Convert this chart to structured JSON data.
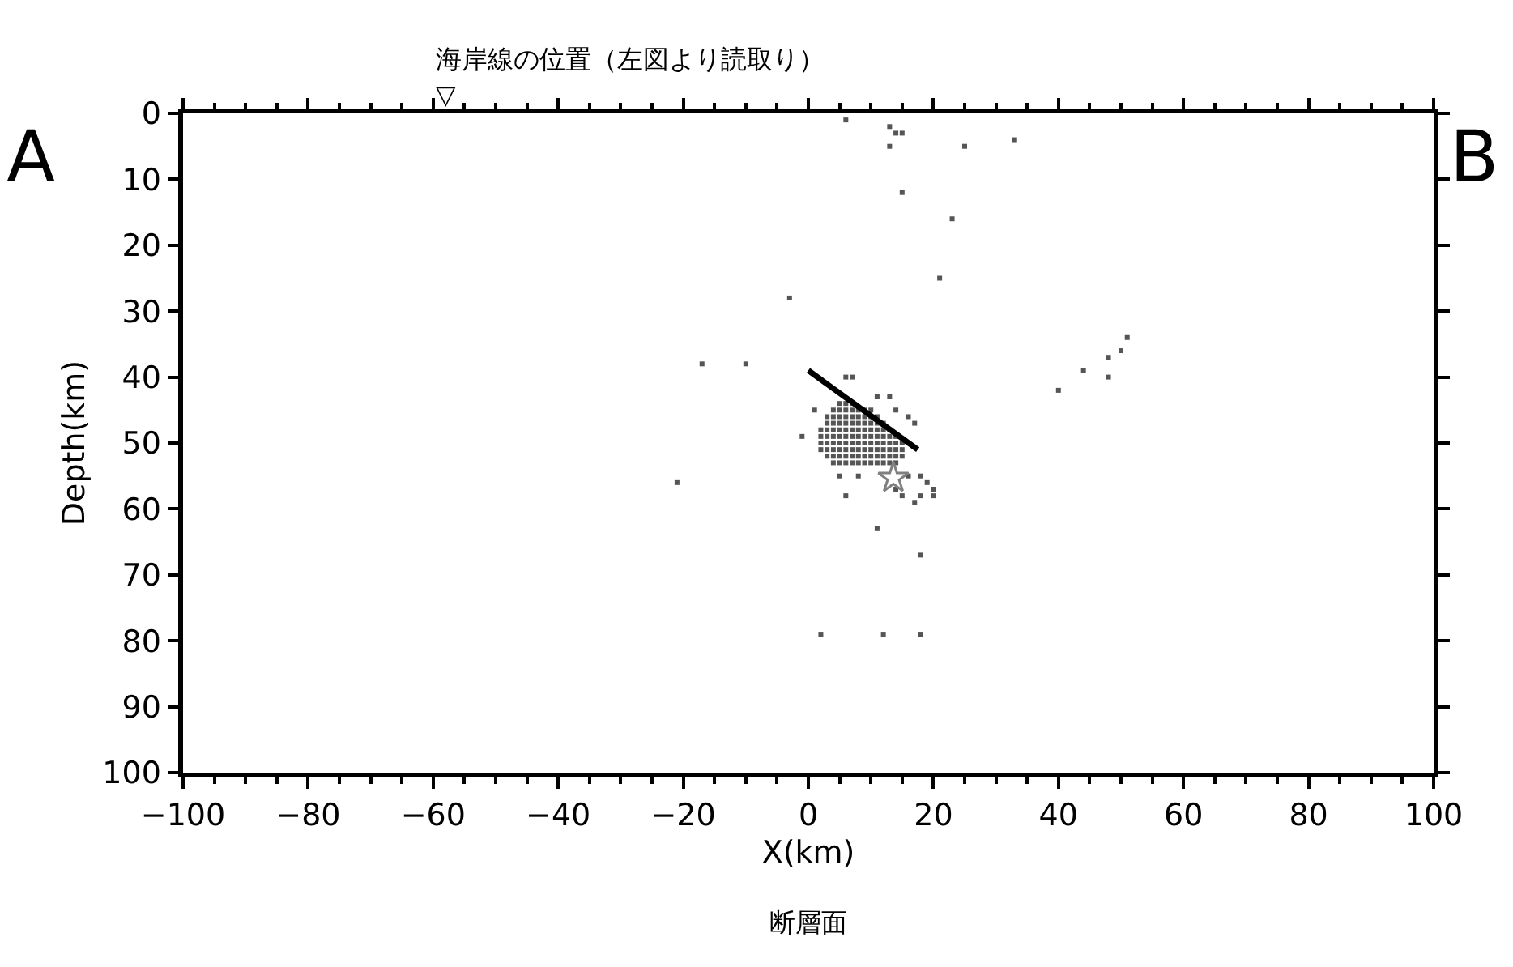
{
  "chart_data": {
    "type": "scatter",
    "xlabel": "X(km)",
    "ylabel": "Depth(km)",
    "xlim": [
      -100,
      100
    ],
    "xticks": [
      -100,
      -80,
      -60,
      -40,
      -20,
      0,
      20,
      40,
      60,
      80,
      100
    ],
    "ylim": [
      100,
      0
    ],
    "yticks": [
      0,
      10,
      20,
      30,
      40,
      50,
      60,
      70,
      80,
      90,
      100
    ],
    "annotations": [
      "A",
      "B",
      "断層面",
      "▽",
      "海岸線の位置（左図より読取り）"
    ],
    "series": [
      {
        "type": "scatter",
        "marker": "square",
        "color": "#555555",
        "x": [
          5,
          6,
          7,
          4,
          5,
          6,
          7,
          8,
          9,
          10,
          3,
          4,
          5,
          6,
          7,
          8,
          9,
          10,
          11,
          3,
          4,
          5,
          6,
          7,
          8,
          9,
          10,
          11,
          12,
          2,
          3,
          4,
          5,
          6,
          7,
          8,
          9,
          10,
          11,
          12,
          13,
          2,
          3,
          4,
          5,
          6,
          7,
          8,
          9,
          10,
          11,
          12,
          13,
          14,
          2,
          3,
          4,
          5,
          6,
          7,
          8,
          9,
          10,
          11,
          12,
          13,
          14,
          15,
          2,
          3,
          4,
          5,
          6,
          7,
          8,
          9,
          10,
          11,
          12,
          13,
          14,
          15,
          3,
          4,
          5,
          6,
          7,
          8,
          9,
          10,
          11,
          12,
          13,
          14,
          15,
          4,
          5,
          6,
          7,
          8,
          9,
          10,
          11,
          12,
          13,
          14,
          6,
          7,
          11,
          13,
          14,
          16,
          17,
          1,
          -1,
          5,
          8,
          16,
          18,
          19,
          14,
          15,
          18,
          20,
          17,
          20,
          6,
          -3,
          -10,
          -17,
          -21,
          11,
          18,
          2,
          12,
          18,
          6,
          13,
          14,
          15,
          13,
          25,
          33,
          15,
          23,
          21,
          51,
          50,
          48,
          44,
          48,
          40
        ],
        "values": [
          44,
          44,
          44,
          45,
          45,
          45,
          45,
          45,
          45,
          45,
          46,
          46,
          46,
          46,
          46,
          46,
          46,
          46,
          46,
          47,
          47,
          47,
          47,
          47,
          47,
          47,
          47,
          47,
          47,
          48,
          48,
          48,
          48,
          48,
          48,
          48,
          48,
          48,
          48,
          48,
          48,
          49,
          49,
          49,
          49,
          49,
          49,
          49,
          49,
          49,
          49,
          49,
          49,
          49,
          50,
          50,
          50,
          50,
          50,
          50,
          50,
          50,
          50,
          50,
          50,
          50,
          50,
          50,
          51,
          51,
          51,
          51,
          51,
          51,
          51,
          51,
          51,
          51,
          51,
          51,
          51,
          51,
          52,
          52,
          52,
          52,
          52,
          52,
          52,
          52,
          52,
          52,
          52,
          52,
          52,
          53,
          53,
          53,
          53,
          53,
          53,
          53,
          53,
          53,
          53,
          53,
          40,
          40,
          43,
          43,
          45,
          46,
          47,
          45,
          49,
          55,
          55,
          55,
          55,
          56,
          57,
          58,
          58,
          58,
          59,
          57,
          58,
          28,
          38,
          38,
          56,
          63,
          67,
          79,
          79,
          79,
          1,
          2,
          3,
          3,
          5,
          5,
          4,
          12,
          16,
          25,
          34,
          36,
          37,
          39,
          40,
          42
        ]
      },
      {
        "type": "line",
        "color": "#000000",
        "x": [
          0,
          17.5
        ],
        "values": [
          39,
          51
        ]
      },
      {
        "type": "scatter",
        "marker": "star",
        "color": "#808080",
        "x": [
          13.6
        ],
        "values": [
          55.3
        ]
      }
    ]
  }
}
